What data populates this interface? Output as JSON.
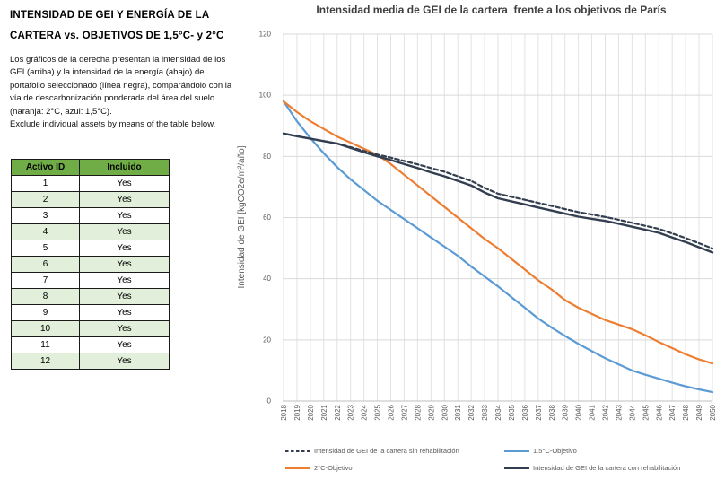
{
  "left_panel": {
    "title": "INTENSIDAD DE GEI Y ENERGÍA DE LA\nCARTERA vs. OBJETIVOS DE 1,5°C- y 2°C",
    "description": "Los gráficos de la derecha presentan la intensidad de los\nGEI (arriba) y la intensidad de la energía (abajo) del\nportafolio seleccionado (línea negra), comparándolo con la\nvía de descarbonización ponderada del área del suelo\n(naranja: 2°C, azul: 1,5°C).\nExclude individual assets by means of the table below.",
    "table": {
      "headers": [
        "Activo ID",
        "Incluido"
      ],
      "rows": [
        [
          "1",
          "Yes"
        ],
        [
          "2",
          "Yes"
        ],
        [
          "3",
          "Yes"
        ],
        [
          "4",
          "Yes"
        ],
        [
          "5",
          "Yes"
        ],
        [
          "6",
          "Yes"
        ],
        [
          "7",
          "Yes"
        ],
        [
          "8",
          "Yes"
        ],
        [
          "9",
          "Yes"
        ],
        [
          "10",
          "Yes"
        ],
        [
          "11",
          "Yes"
        ],
        [
          "12",
          "Yes"
        ]
      ],
      "header_bg": "#70AD47",
      "alt_row_bg": "#E2EFDA"
    }
  },
  "chart": {
    "title": "Intensidad media de GEI de la cartera  frente a los objetivos de París"
  },
  "chart_data": {
    "type": "line",
    "title": "Intensidad media de GEI de la cartera  frente a los objetivos de París",
    "xlabel": "",
    "ylabel": "Intensidad de GEI [kgCO2e/m²/año]",
    "ylim": [
      0,
      120
    ],
    "yticks": [
      0,
      20,
      40,
      60,
      80,
      100,
      120
    ],
    "grid": true,
    "legend_position": "bottom",
    "x": [
      2018,
      2019,
      2020,
      2021,
      2022,
      2023,
      2024,
      2025,
      2026,
      2027,
      2028,
      2029,
      2030,
      2031,
      2032,
      2033,
      2034,
      2035,
      2036,
      2037,
      2038,
      2039,
      2040,
      2041,
      2042,
      2043,
      2044,
      2045,
      2046,
      2047,
      2048,
      2049,
      2050
    ],
    "series": [
      {
        "name": "Intensidad de GEI de la cartera sin rehabilitación",
        "color": "#333F50",
        "dash": true,
        "width": 2.2,
        "values": [
          87.5,
          86.6,
          85.8,
          85.0,
          84.2,
          83.0,
          81.8,
          80.6,
          79.6,
          78.5,
          77.4,
          76.2,
          75.0,
          73.5,
          72.0,
          69.7,
          67.8,
          66.8,
          65.8,
          64.8,
          63.8,
          62.8,
          61.8,
          61.0,
          60.2,
          59.3,
          58.3,
          57.3,
          56.3,
          54.8,
          53.3,
          51.6,
          49.9
        ]
      },
      {
        "name": "1.5°C-Objetivo",
        "color": "#5B9BD5",
        "dash": false,
        "width": 2.2,
        "values": [
          98.0,
          91.5,
          86.0,
          81.0,
          76.5,
          72.5,
          69.0,
          65.5,
          62.5,
          59.5,
          56.5,
          53.5,
          50.5,
          47.5,
          44.0,
          40.7,
          37.5,
          34.0,
          30.5,
          27.0,
          24.0,
          21.3,
          18.7,
          16.3,
          14.0,
          12.0,
          10.0,
          8.6,
          7.3,
          6.0,
          4.8,
          3.8,
          2.9
        ]
      },
      {
        "name": "2°C-Objetivo",
        "color": "#ED7D31",
        "dash": false,
        "width": 2.2,
        "values": [
          98.0,
          94.5,
          91.5,
          89.0,
          86.5,
          84.5,
          82.5,
          80.5,
          77.5,
          74.0,
          70.5,
          67.0,
          63.5,
          60.0,
          56.5,
          53.0,
          50.0,
          46.5,
          43.0,
          39.5,
          36.5,
          33.0,
          30.5,
          28.5,
          26.5,
          25.0,
          23.5,
          21.5,
          19.3,
          17.3,
          15.3,
          13.6,
          12.3
        ]
      },
      {
        "name": "Intensidad de GEI de la cartera con rehabilitación",
        "color": "#333F50",
        "dash": false,
        "width": 2.4,
        "values": [
          87.5,
          86.6,
          85.8,
          85.0,
          84.2,
          82.8,
          81.4,
          80.0,
          78.8,
          77.5,
          76.2,
          74.8,
          73.5,
          72.0,
          70.5,
          68.2,
          66.3,
          65.3,
          64.3,
          63.3,
          62.3,
          61.3,
          60.3,
          59.6,
          58.9,
          58.0,
          57.0,
          56.0,
          55.0,
          53.5,
          52.0,
          50.3,
          48.6
        ]
      }
    ],
    "colors": {
      "grid": "#E2E2E2",
      "axis": "#BFBFBF",
      "tick_text": "#595959"
    }
  }
}
